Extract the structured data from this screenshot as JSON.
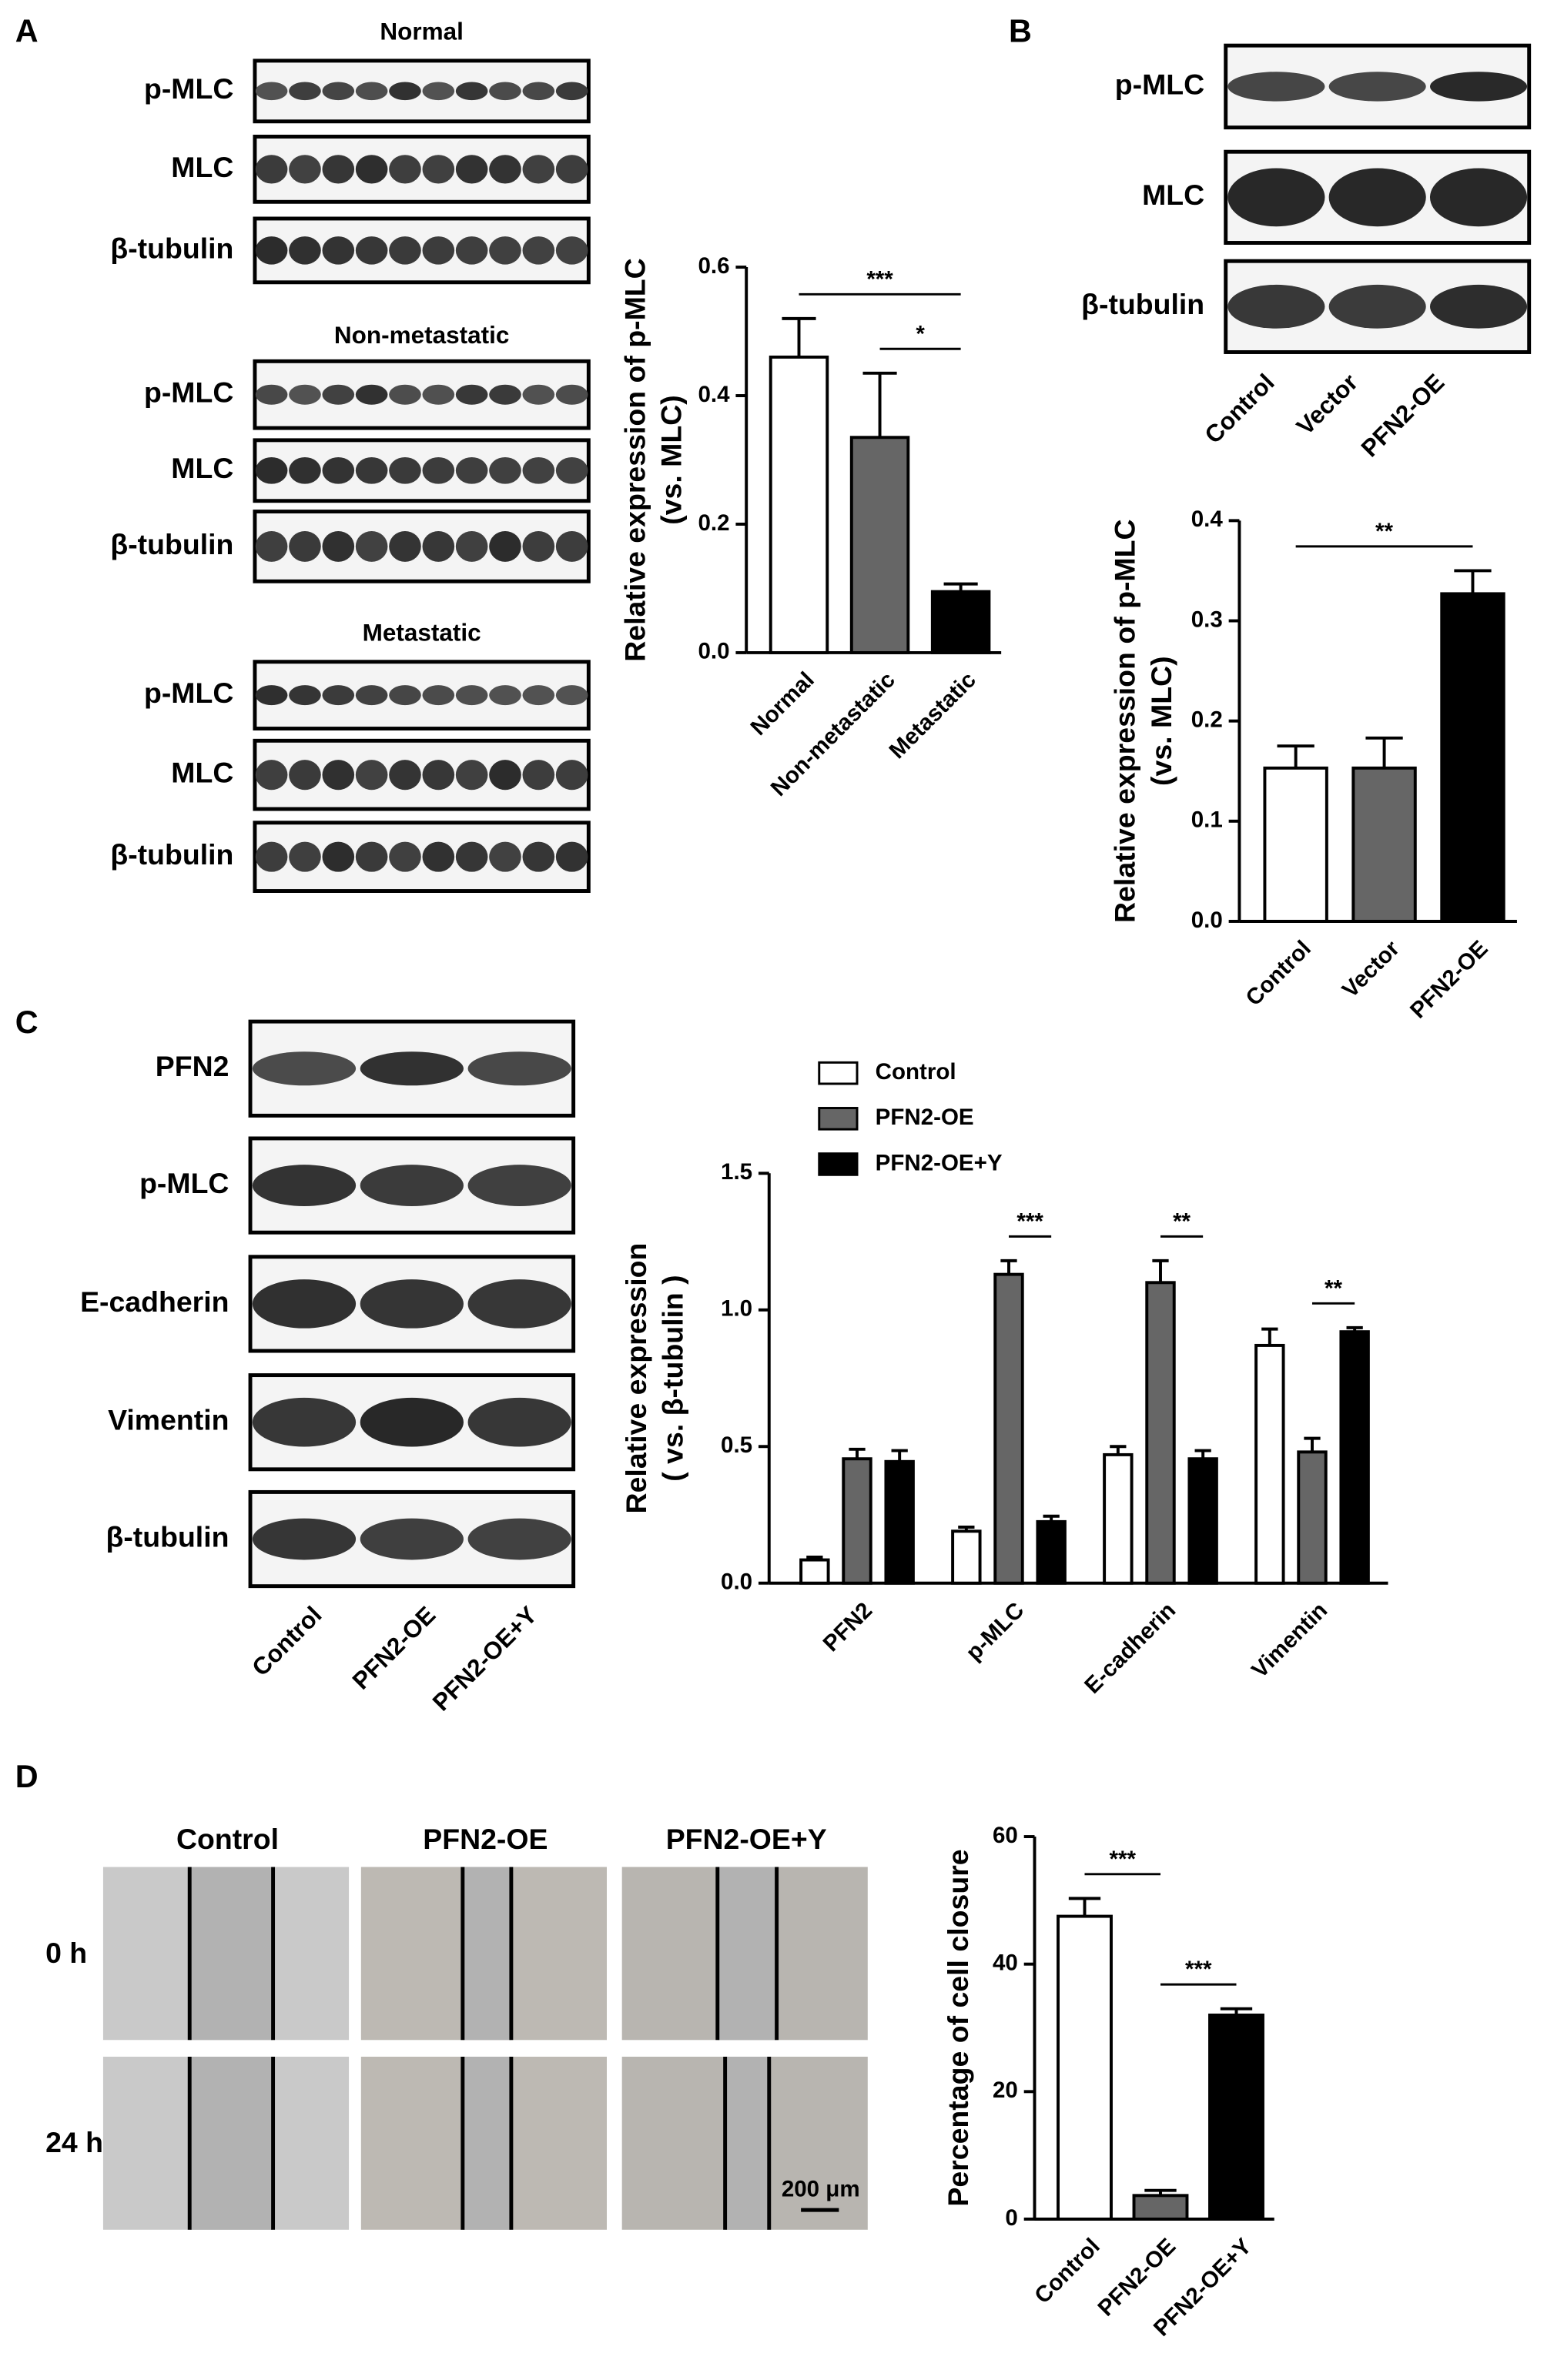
{
  "panel_labels": [
    "A",
    "B",
    "C",
    "D"
  ],
  "blots_a": {
    "groups": [
      {
        "title": "Normal",
        "rows": [
          "p-MLC",
          "MLC",
          "β-tubulin"
        ]
      },
      {
        "title": "Non-metastatic",
        "rows": [
          "p-MLC",
          "MLC",
          "β-tubulin"
        ]
      },
      {
        "title": "Metastatic",
        "rows": [
          "p-MLC",
          "MLC",
          "β-tubulin"
        ]
      }
    ]
  },
  "blots_b": {
    "rows": [
      "p-MLC",
      "MLC",
      "β-tubulin"
    ],
    "lanes": [
      "Control",
      "Vector",
      "PFN2-OE"
    ]
  },
  "blots_c": {
    "rows": [
      "PFN2",
      "p-MLC",
      "E-cadherin",
      "Vimentin",
      "β-tubulin"
    ],
    "lanes": [
      "Control",
      "PFN2-OE",
      "PFN2-OE+Y"
    ]
  },
  "wound_d": {
    "columns": [
      "Control",
      "PFN2-OE",
      "PFN2-OE+Y"
    ],
    "rows": [
      "0 h",
      "24 h"
    ],
    "scale_bar": "200 μm"
  },
  "chart_data": [
    {
      "type": "bar",
      "ylabel": [
        "Relative expression of p-MLC",
        "(vs. MLC)"
      ],
      "categories": [
        "Normal",
        "Non-metastatic",
        "Metastatic"
      ],
      "values": [
        0.46,
        0.335,
        0.095
      ],
      "errors": [
        0.06,
        0.1,
        0.012
      ],
      "colors": [
        "#ffffff",
        "#666666",
        "#000000"
      ],
      "ylim": [
        0,
        0.6
      ],
      "yticks": [
        {
          "value": 0,
          "label": "0.0"
        },
        0.2,
        0.4,
        0.6
      ],
      "annotations": [
        {
          "label": "***",
          "between": [
            "Normal",
            "Metastatic"
          ]
        },
        {
          "label": "*",
          "between": [
            "Non-metastatic",
            "Metastatic"
          ]
        }
      ]
    },
    {
      "type": "bar",
      "ylabel": [
        "Relative expression of p-MLC",
        "(vs. MLC)"
      ],
      "categories": [
        "Control",
        "Vector",
        "PFN2-OE"
      ],
      "values": [
        0.153,
        0.153,
        0.327
      ],
      "errors": [
        0.022,
        0.03,
        0.023
      ],
      "colors": [
        "#ffffff",
        "#666666",
        "#000000"
      ],
      "ylim": [
        0,
        0.4
      ],
      "yticks": [
        {
          "value": 0,
          "label": "0.0"
        },
        0.1,
        0.2,
        0.3,
        0.4
      ],
      "annotations": [
        {
          "label": "**",
          "between": [
            "Control",
            "PFN2-OE"
          ]
        }
      ]
    },
    {
      "type": "bar",
      "ylabel": [
        "Relative expression",
        "( vs. β-tubulin )"
      ],
      "categories": [
        "PFN2",
        "p-MLC",
        "E-cadherin",
        "Vimentin"
      ],
      "series": [
        {
          "name": "Control",
          "color": "#ffffff",
          "values": [
            0.085,
            0.19,
            0.47,
            0.87
          ],
          "errors": [
            0.01,
            0.015,
            0.03,
            0.06
          ]
        },
        {
          "name": "PFN2-OE",
          "color": "#666666",
          "values": [
            0.455,
            1.13,
            1.1,
            0.48
          ],
          "errors": [
            0.035,
            0.05,
            0.08,
            0.05
          ]
        },
        {
          "name": "PFN2-OE+Y",
          "color": "#000000",
          "values": [
            0.445,
            0.225,
            0.455,
            0.92
          ],
          "errors": [
            0.04,
            0.02,
            0.03,
            0.015
          ]
        }
      ],
      "ylim": [
        0,
        1.5
      ],
      "yticks": [
        {
          "value": 0,
          "label": "0.0"
        },
        0.5,
        {
          "value": 1,
          "label": "1.0"
        },
        1.5
      ],
      "annotations": [
        {
          "label": "***",
          "category": "p-MLC",
          "between": [
            "PFN2-OE",
            "PFN2-OE+Y"
          ]
        },
        {
          "label": "**",
          "category": "E-cadherin",
          "between": [
            "PFN2-OE",
            "PFN2-OE+Y"
          ]
        },
        {
          "label": "**",
          "category": "Vimentin",
          "between": [
            "PFN2-OE",
            "PFN2-OE+Y"
          ]
        }
      ]
    },
    {
      "type": "bar",
      "ylabel": [
        "Percentage of  cell closure"
      ],
      "categories": [
        "Control",
        "PFN2-OE",
        "PFN2-OE+Y"
      ],
      "values": [
        47.5,
        3.7,
        32
      ],
      "errors": [
        2.8,
        0.8,
        1
      ],
      "colors": [
        "#ffffff",
        "#666666",
        "#000000"
      ],
      "ylim": [
        0,
        60
      ],
      "yticks": [
        0,
        20,
        40,
        60
      ],
      "annotations": [
        {
          "label": "***",
          "between": [
            "Control",
            "PFN2-OE"
          ]
        },
        {
          "label": "***",
          "between": [
            "PFN2-OE",
            "PFN2-OE+Y"
          ]
        }
      ]
    }
  ]
}
